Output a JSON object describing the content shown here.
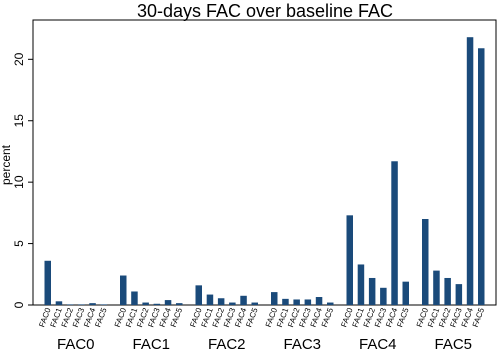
{
  "chart_data": {
    "type": "bar",
    "title": "30-days FAC over baseline FAC",
    "y_label": "percent",
    "categories": [
      "FAC0",
      "FAC1",
      "FAC2",
      "FAC3",
      "FAC4",
      "FAC5"
    ],
    "series": [
      {
        "name": "FAC0",
        "color": "#1a4a7a",
        "values": [
          3.6,
          2.4,
          1.6,
          1.05,
          7.3,
          7.0
        ]
      },
      {
        "name": "FAC1",
        "color": "#1a4a7a",
        "values": [
          0.3,
          1.1,
          0.85,
          0.5,
          3.3,
          2.8
        ]
      },
      {
        "name": "FAC2",
        "color": "#1a4a7a",
        "values": [
          0.05,
          0.2,
          0.55,
          0.45,
          2.2,
          2.2
        ]
      },
      {
        "name": "FAC3",
        "color": "#1a4a7a",
        "values": [
          0.05,
          0.1,
          0.2,
          0.45,
          1.4,
          1.7
        ]
      },
      {
        "name": "FAC4",
        "color": "#1a4a7a",
        "values": [
          0.15,
          0.4,
          0.75,
          0.65,
          11.7,
          21.8
        ]
      },
      {
        "name": "FAC5",
        "color": "#1a4a7a",
        "values": [
          0.05,
          0.15,
          0.2,
          0.2,
          1.9,
          20.9
        ]
      }
    ],
    "ylim": [
      0,
      23.2
    ],
    "yticks": [
      0,
      5,
      10,
      15,
      20
    ],
    "grid": false
  }
}
